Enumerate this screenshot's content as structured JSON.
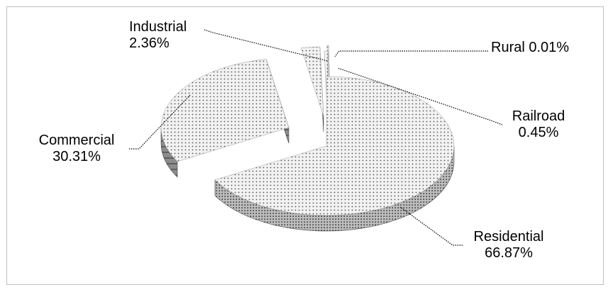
{
  "chart_data": {
    "type": "pie",
    "title": "",
    "style": "3d-exploded",
    "legend": "none",
    "slices": [
      {
        "name": "Residential",
        "value": 66.87,
        "label": "66.87%"
      },
      {
        "name": "Commercial",
        "value": 30.31,
        "label": "30.31%"
      },
      {
        "name": "Industrial",
        "value": 2.36,
        "label": "2.36%"
      },
      {
        "name": "Rural",
        "value": 0.01,
        "label": "0.01%"
      },
      {
        "name": "Railroad",
        "value": 0.45,
        "label": "0.45%"
      }
    ]
  },
  "colors": {
    "top_fill": "#f2f2f2",
    "dots": "#555555",
    "side_fill": "#8c8c8c",
    "side_stripe": "#5f5f5f",
    "leader": "#000000",
    "frame": "#bfbfbf"
  }
}
